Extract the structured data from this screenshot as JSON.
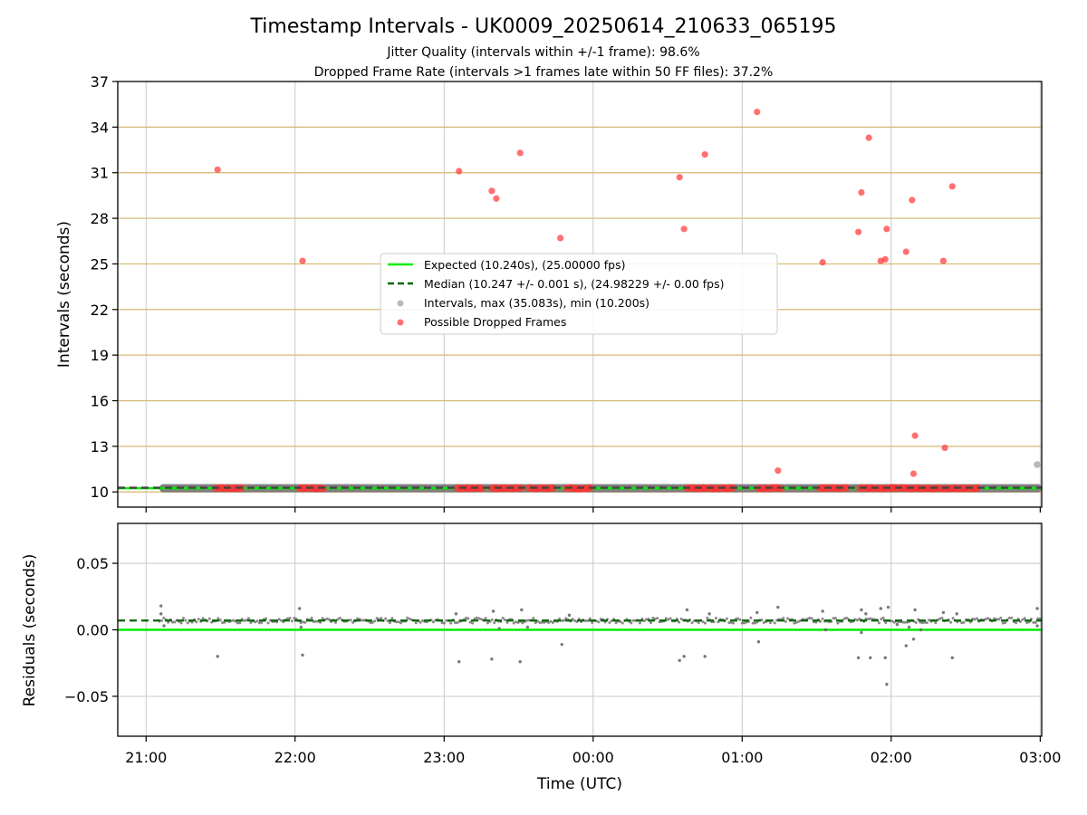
{
  "title": "Timestamp Intervals - UK0009_20250614_210633_065195",
  "subtitle_lines": [
    "Jitter Quality (intervals within +/-1 frame): 98.6%",
    "Dropped Frame Rate (intervals >1 frames late within 50 FF files): 37.2%"
  ],
  "xlabel": "Time (UTC)",
  "colors": {
    "expected": "#00ee00",
    "median": "#006400",
    "intervals": "#808080",
    "dropped": "#ff3333",
    "hline": "#d4b870",
    "grid": "#c8c8c8"
  },
  "chart_data": [
    {
      "type": "scatter",
      "ylabel": "Intervals (seconds)",
      "ylim": [
        9,
        37
      ],
      "yticks": [
        10,
        13,
        16,
        19,
        22,
        25,
        28,
        31,
        34,
        37
      ],
      "ytick_labels": [
        "10",
        "13",
        "16",
        "19",
        "22",
        "25",
        "28",
        "31",
        "34",
        "37"
      ],
      "xlim_hours": [
        20.81,
        27.01
      ],
      "xticks_hours": [
        21,
        22,
        23,
        24,
        25,
        26,
        27
      ],
      "xtick_labels": [
        "21:00",
        "22:00",
        "23:00",
        "00:00",
        "01:00",
        "02:00",
        "03:00"
      ],
      "grid": true,
      "legend_position": "center",
      "legend": [
        "Expected (10.240s), (25.00000 fps)",
        "Median (10.247 +/- 0.001 s), (24.98229 +/- 0.00 fps)",
        "Intervals, max (35.083s), min (10.200s)",
        "Possible Dropped Frames"
      ],
      "series": [
        {
          "name": "Expected (10.240s), (25.00000 fps)",
          "kind": "hline",
          "y": 10.24
        },
        {
          "name": "Median (10.247 +/- 0.001 s), (24.98229 +/- 0.00 fps)",
          "kind": "hline",
          "y": 10.247
        },
        {
          "name": "Intervals, max (35.083s), min (10.200s)",
          "kind": "band",
          "x_range": [
            21.09,
            27.01
          ],
          "y": 10.24,
          "points": [
            [
              26.98,
              11.8
            ]
          ]
        },
        {
          "name": "Possible Dropped Frames",
          "kind": "scatter",
          "clusters": [
            [
              21.47,
              21.64
            ],
            [
              22.03,
              22.19
            ],
            [
              23.09,
              23.25
            ],
            [
              23.32,
              23.52
            ],
            [
              23.57,
              23.73
            ],
            [
              23.82,
              23.98
            ],
            [
              24.63,
              24.94
            ],
            [
              25.11,
              25.26
            ],
            [
              25.52,
              25.7
            ],
            [
              25.79,
              26.0
            ],
            [
              26.0,
              26.35
            ],
            [
              26.37,
              26.58
            ]
          ],
          "points": [
            [
              21.48,
              31.2
            ],
            [
              22.05,
              25.2
            ],
            [
              23.1,
              31.1
            ],
            [
              23.32,
              29.8
            ],
            [
              23.35,
              29.3
            ],
            [
              23.51,
              32.3
            ],
            [
              23.78,
              26.7
            ],
            [
              24.58,
              30.7
            ],
            [
              24.61,
              27.3
            ],
            [
              24.75,
              32.2
            ],
            [
              25.1,
              35.0
            ],
            [
              25.24,
              11.4
            ],
            [
              25.54,
              25.1
            ],
            [
              25.78,
              27.1
            ],
            [
              25.8,
              29.7
            ],
            [
              25.85,
              33.3
            ],
            [
              25.93,
              25.2
            ],
            [
              25.96,
              25.3
            ],
            [
              25.97,
              27.3
            ],
            [
              26.1,
              25.8
            ],
            [
              26.14,
              29.2
            ],
            [
              26.15,
              11.2
            ],
            [
              26.16,
              13.7
            ],
            [
              26.35,
              25.2
            ],
            [
              26.36,
              12.9
            ],
            [
              26.41,
              30.1
            ]
          ]
        }
      ]
    },
    {
      "type": "scatter",
      "ylabel": "Residuals (seconds)",
      "ylim": [
        -0.08,
        0.08
      ],
      "yticks": [
        -0.05,
        0.0,
        0.05
      ],
      "ytick_labels": [
        "−0.05",
        "0.00",
        "0.05"
      ],
      "xlim_hours": [
        20.81,
        27.01
      ],
      "xticks_hours": [
        21,
        22,
        23,
        24,
        25,
        26,
        27
      ],
      "xtick_labels": [
        "21:00",
        "22:00",
        "23:00",
        "00:00",
        "01:00",
        "02:00",
        "03:00"
      ],
      "grid": true,
      "series": [
        {
          "name": "Expected",
          "kind": "hline",
          "y": 0.0
        },
        {
          "name": "Median",
          "kind": "hline",
          "y": 0.007
        },
        {
          "name": "Residuals",
          "kind": "scatter",
          "x_range": [
            21.09,
            27.01
          ],
          "baseline": 0.007,
          "points": [
            [
              21.1,
              0.018
            ],
            [
              21.1,
              0.012
            ],
            [
              21.12,
              0.003
            ],
            [
              21.48,
              -0.02
            ],
            [
              22.03,
              0.016
            ],
            [
              22.05,
              -0.019
            ],
            [
              22.04,
              0.002
            ],
            [
              23.1,
              -0.024
            ],
            [
              23.08,
              0.012
            ],
            [
              23.32,
              -0.022
            ],
            [
              23.33,
              0.014
            ],
            [
              23.37,
              0.001
            ],
            [
              23.51,
              -0.024
            ],
            [
              23.52,
              0.015
            ],
            [
              23.56,
              0.002
            ],
            [
              23.79,
              -0.011
            ],
            [
              23.84,
              0.011
            ],
            [
              24.58,
              -0.023
            ],
            [
              24.61,
              -0.02
            ],
            [
              24.63,
              0.015
            ],
            [
              24.75,
              -0.02
            ],
            [
              24.78,
              0.012
            ],
            [
              25.11,
              -0.009
            ],
            [
              25.1,
              0.013
            ],
            [
              25.24,
              0.017
            ],
            [
              25.54,
              0.014
            ],
            [
              25.56,
              0.0
            ],
            [
              25.78,
              -0.021
            ],
            [
              25.8,
              -0.002
            ],
            [
              25.8,
              0.015
            ],
            [
              25.83,
              0.012
            ],
            [
              25.86,
              -0.021
            ],
            [
              25.93,
              0.016
            ],
            [
              25.96,
              -0.021
            ],
            [
              25.97,
              -0.041
            ],
            [
              25.98,
              0.017
            ],
            [
              26.04,
              0.004
            ],
            [
              26.1,
              -0.012
            ],
            [
              26.12,
              0.002
            ],
            [
              26.15,
              -0.007
            ],
            [
              26.16,
              0.015
            ],
            [
              26.2,
              0.0
            ],
            [
              26.35,
              0.013
            ],
            [
              26.41,
              -0.021
            ],
            [
              26.44,
              0.012
            ],
            [
              26.98,
              0.016
            ],
            [
              26.98,
              0.003
            ]
          ]
        }
      ]
    }
  ]
}
